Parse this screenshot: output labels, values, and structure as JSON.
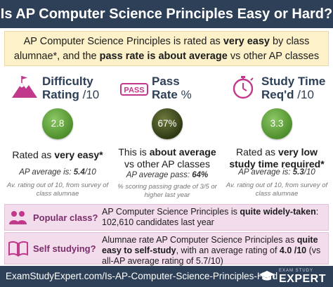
{
  "header": {
    "title": "Is AP Computer Science Principles Easy or Hard?"
  },
  "subhead": {
    "p1": "AP Computer Science Principles is rated as ",
    "b1": "very easy",
    "p2": " by class alumnae*, and the ",
    "b2": "pass rate is about average",
    "p3": " vs other AP classes"
  },
  "columns": [
    {
      "title_bold": "Difficulty",
      "title_line2_bold": "Rating",
      "title_line2_rest": " /10",
      "icon": "mountain-flag-icon",
      "circle_value": "2.8",
      "circle_color": "#5a9a35",
      "verdict_pre": "Rated as ",
      "verdict_bold": "very easy*",
      "verdict_post": "",
      "avg_pre": "AP average is: ",
      "avg_bold": "5.4",
      "avg_post": "/10",
      "note": "Av. rating out of 10, from survey of class alumnae"
    },
    {
      "title_bold": "Pass",
      "title_line2_bold": "Rate",
      "title_line2_rest": " %",
      "icon": "pass-stamp-icon",
      "icon_text": "PASS",
      "circle_value": "67%",
      "circle_color": "#2f3a14",
      "verdict_pre": "This is ",
      "verdict_bold": "about average",
      "verdict_post": " vs other AP classes",
      "avg_pre": "AP average pass: ",
      "avg_bold": "64%",
      "avg_post": "",
      "note": "% scoring passing grade of 3/5 or higher last year"
    },
    {
      "title_bold": "Study Time",
      "title_line2_bold": "Req'd",
      "title_line2_rest": " /10",
      "icon": "stopwatch-icon",
      "circle_value": "3.3",
      "circle_color": "#5a9a35",
      "verdict_pre": "Rated as ",
      "verdict_bold": "very low study time required*",
      "verdict_post": "",
      "avg_pre": "AP average is: ",
      "avg_bold": "5.3",
      "avg_post": "/10",
      "note": "Av. rating out of 10, from survey of class alumnae"
    }
  ],
  "popular": {
    "label": "Popular class?",
    "icon": "people-icon",
    "t1": "AP Computer Science Principles is ",
    "b1": "quite widely-taken",
    "t2": ": 102,610 candidates last year"
  },
  "selfstudy": {
    "label": "Self studying?",
    "icon": "open-book-icon",
    "t1": "Alumnae rate AP Computer Science Principles as ",
    "b1": "quite easy to self-study",
    "t2": ", with an average rating of ",
    "b2": "4.0 /10",
    "t3": " (vs all-AP average rating of 5.7/10)"
  },
  "footer": {
    "url": "ExamStudyExpert.com/Is-AP-Computer-Science-Principles-Hard",
    "logo_small": "EXAM STUDY",
    "logo_big": "EXPERT",
    "logo_icon": "graduation-cap-icon"
  },
  "colors": {
    "navy": "#2e4057",
    "cream": "#fdf1c9",
    "pink": "#f3dcec",
    "magenta": "#c0398a",
    "green": "#5a9a35",
    "dark_olive": "#2f3a14"
  }
}
